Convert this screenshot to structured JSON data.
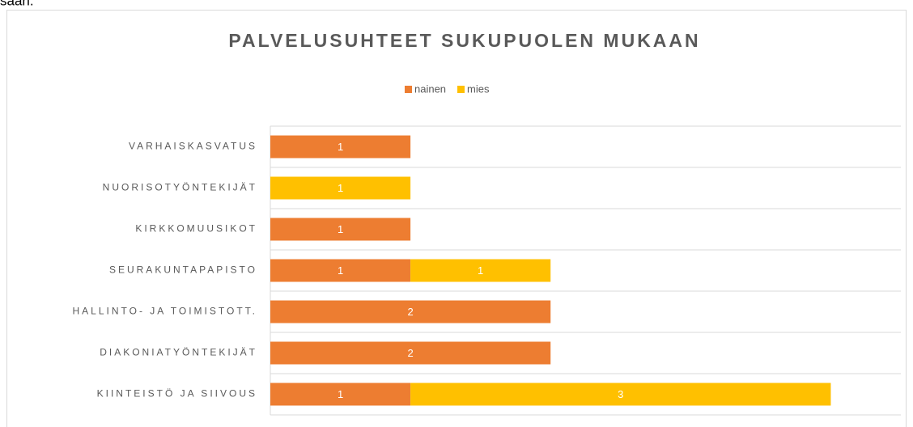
{
  "page_text": "saan.",
  "chart_data": {
    "type": "stacked-bar-horizontal",
    "title": "PALVELUSUHTEET SUKUPUOLEN MUKAAN",
    "categories": [
      "VARHAISKASVATUS",
      "NUORISOTYÖNTEKIJÄT",
      "KIRKKOMUUSIKOT",
      "SEURAKUNTAPAPISTO",
      "HALLINTO- JA TOIMISTOTT.",
      "DIAKONIATYÖNTEKIJÄT",
      "KIINTEISTÖ JA SIIVOUS"
    ],
    "series": [
      {
        "name": "nainen",
        "color": "#ED7D31",
        "values": [
          1,
          null,
          1,
          1,
          2,
          2,
          1
        ]
      },
      {
        "name": "mies",
        "color": "#FFC000",
        "values": [
          null,
          1,
          null,
          1,
          null,
          null,
          3
        ]
      }
    ],
    "xlim": [
      0,
      4.5
    ],
    "grid": true,
    "legend": "top"
  }
}
